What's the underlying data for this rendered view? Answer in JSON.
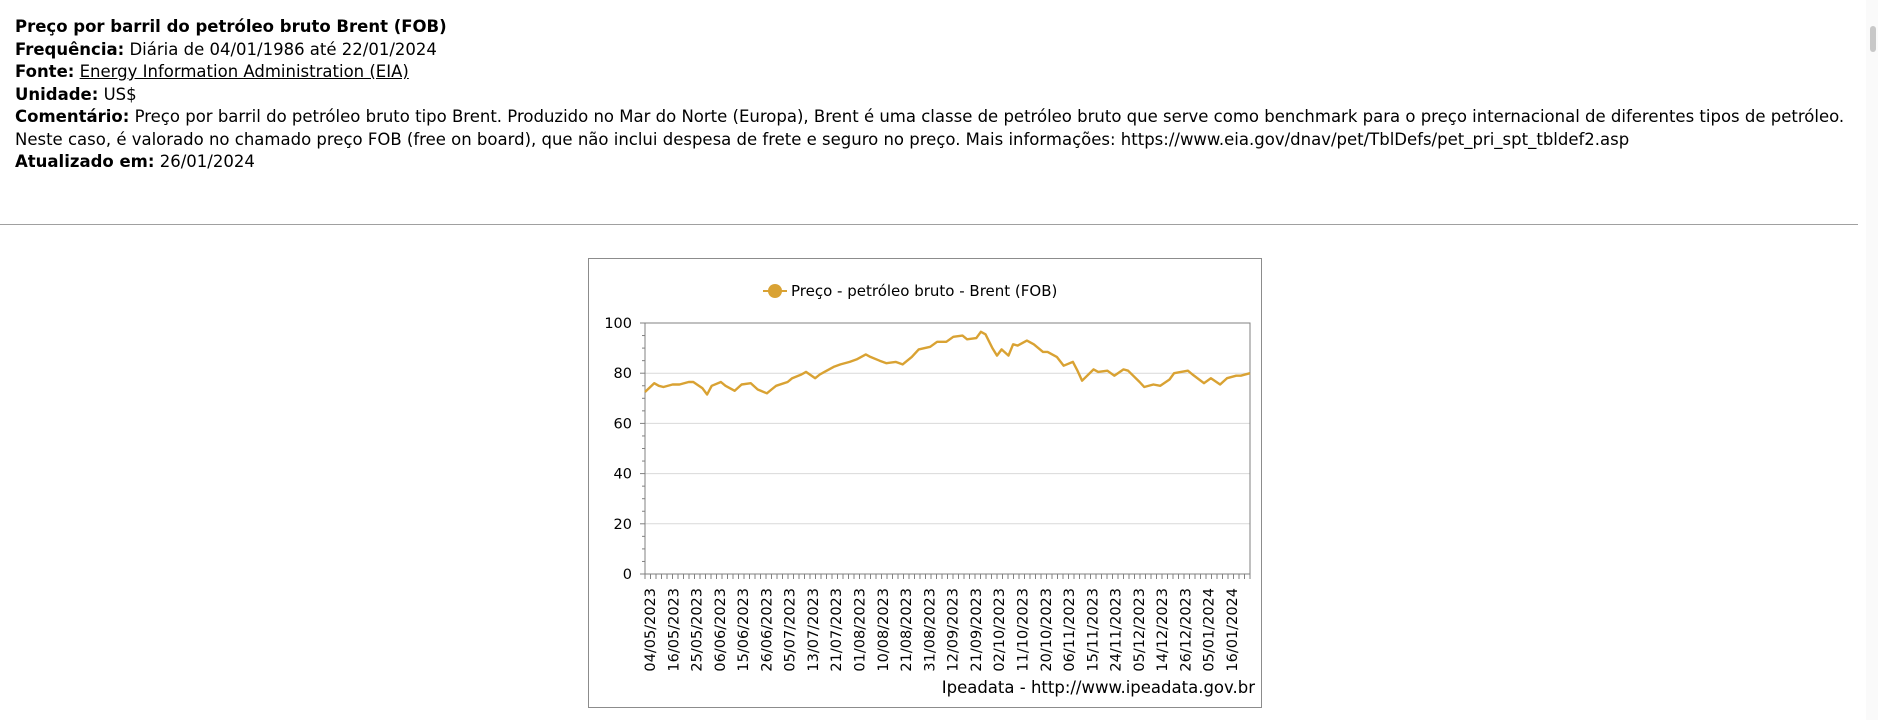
{
  "header": {
    "title": "Preço por barril do petróleo bruto Brent (FOB)",
    "frequency_label": "Frequência:",
    "frequency_value": "Diária de 04/01/1986 até 22/01/2024",
    "source_label": "Fonte:",
    "source_value": "Energy Information Administration (EIA)",
    "unit_label": "Unidade:",
    "unit_value": "US$",
    "comment_label": "Comentário:",
    "comment_value": "Preço por barril do petróleo bruto tipo Brent. Produzido no Mar do Norte (Europa), Brent é uma classe de petróleo bruto que serve como benchmark para o preço internacional de diferentes tipos de petróleo. Neste caso, é valorado no chamado preço FOB (free on board), que não inclui despesa de frete e seguro no preço. Mais informações: https://www.eia.gov/dnav/pet/TblDefs/pet_pri_spt_tbldef2.asp",
    "updated_label": "Atualizado em:",
    "updated_value": "26/01/2024"
  },
  "chart_credit": "Ipeadata - http://www.ipeadata.gov.br",
  "colors": {
    "series": "#D9A233",
    "grid": "#d9d9d9",
    "axis": "#808080"
  },
  "chart_data": {
    "type": "line",
    "title": "",
    "xlabel": "",
    "ylabel": "",
    "ylim": [
      0,
      100
    ],
    "yticks": [
      0,
      20,
      40,
      60,
      80,
      100
    ],
    "grid": true,
    "legend_position": "top",
    "x_tick_labels": [
      "04/05/2023",
      "16/05/2023",
      "25/05/2023",
      "06/06/2023",
      "15/06/2023",
      "26/06/2023",
      "05/07/2023",
      "13/07/2023",
      "21/07/2023",
      "01/08/2023",
      "10/08/2023",
      "21/08/2023",
      "31/08/2023",
      "12/09/2023",
      "21/09/2023",
      "02/10/2023",
      "11/10/2023",
      "20/10/2023",
      "06/11/2023",
      "15/11/2023",
      "24/11/2023",
      "05/12/2023",
      "14/12/2023",
      "26/12/2023",
      "05/01/2024",
      "16/01/2024"
    ],
    "series": [
      {
        "name": "Preço - petróleo bruto - Brent (FOB)",
        "x": [
          "04/05/2023",
          "08/05/2023",
          "10/05/2023",
          "12/05/2023",
          "16/05/2023",
          "19/05/2023",
          "23/05/2023",
          "25/05/2023",
          "29/05/2023",
          "31/05/2023",
          "02/06/2023",
          "06/06/2023",
          "08/06/2023",
          "12/06/2023",
          "15/06/2023",
          "19/06/2023",
          "22/06/2023",
          "26/06/2023",
          "28/06/2023",
          "30/06/2023",
          "05/07/2023",
          "07/07/2023",
          "11/07/2023",
          "13/07/2023",
          "17/07/2023",
          "19/07/2023",
          "21/07/2023",
          "25/07/2023",
          "28/07/2023",
          "01/08/2023",
          "04/08/2023",
          "08/08/2023",
          "10/08/2023",
          "14/08/2023",
          "17/08/2023",
          "21/08/2023",
          "24/08/2023",
          "28/08/2023",
          "31/08/2023",
          "05/09/2023",
          "08/09/2023",
          "12/09/2023",
          "15/09/2023",
          "19/09/2023",
          "21/09/2023",
          "25/09/2023",
          "27/09/2023",
          "29/09/2023",
          "02/10/2023",
          "04/10/2023",
          "06/10/2023",
          "09/10/2023",
          "11/10/2023",
          "13/10/2023",
          "17/10/2023",
          "20/10/2023",
          "24/10/2023",
          "26/10/2023",
          "30/10/2023",
          "02/11/2023",
          "06/11/2023",
          "08/11/2023",
          "10/11/2023",
          "15/11/2023",
          "17/11/2023",
          "21/11/2023",
          "24/11/2023",
          "28/11/2023",
          "30/11/2023",
          "05/12/2023",
          "07/12/2023",
          "11/12/2023",
          "14/12/2023",
          "18/12/2023",
          "20/12/2023",
          "26/12/2023",
          "28/12/2023",
          "02/01/2024",
          "05/01/2024",
          "09/01/2024",
          "12/01/2024",
          "16/01/2024",
          "18/01/2024",
          "22/01/2024"
        ],
        "values": [
          72.5,
          76,
          75,
          74.5,
          75.5,
          75.5,
          76.5,
          76.5,
          74,
          71.5,
          75,
          76.5,
          75,
          73,
          75.5,
          76,
          73.5,
          72,
          73.5,
          75,
          76.5,
          78,
          79.5,
          80.5,
          78,
          79.5,
          80.5,
          82.5,
          83.5,
          84.5,
          85.5,
          87.5,
          86.5,
          85,
          84,
          84.5,
          83.5,
          86.5,
          89.5,
          90.5,
          92.5,
          92.5,
          94.5,
          95,
          93.5,
          94,
          96.5,
          95.5,
          90,
          87,
          89.5,
          87,
          91.5,
          91,
          93,
          91.5,
          88.5,
          88.5,
          86.5,
          83,
          84.5,
          81,
          77,
          81.5,
          80.5,
          81,
          79,
          81.5,
          81,
          76.5,
          74.5,
          75.5,
          75,
          77.5,
          80,
          81,
          79.5,
          76,
          78,
          75.5,
          78,
          79,
          79,
          80
        ]
      }
    ]
  }
}
